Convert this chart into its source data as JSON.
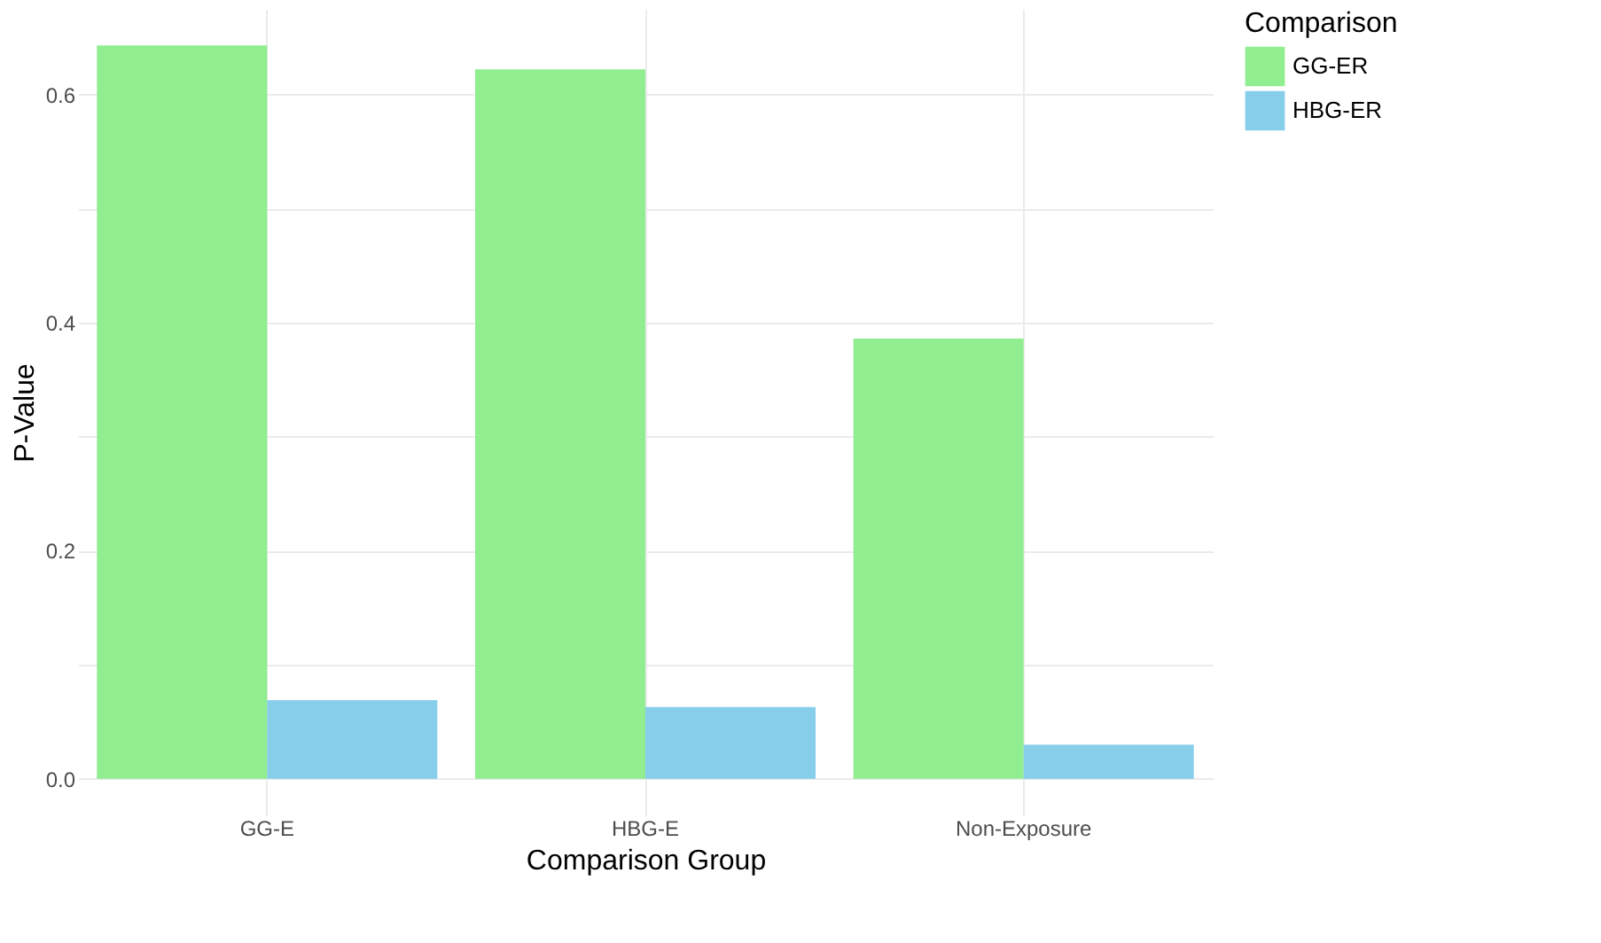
{
  "chart_data": {
    "type": "bar",
    "xlabel": "Comparison Group",
    "ylabel": "P-Value",
    "legend_title": "Comparison",
    "categories": [
      "GG-E",
      "HBG-E",
      "Non-Exposure"
    ],
    "series": [
      {
        "name": "GG-ER",
        "color": "#90ee90",
        "values": [
          0.643,
          0.622,
          0.386
        ]
      },
      {
        "name": "HBG-ER",
        "color": "#87ceeb",
        "values": [
          0.069,
          0.063,
          0.03
        ]
      }
    ],
    "ylim": [
      -0.032,
      0.675
    ],
    "yticks": [
      {
        "value": 0.0,
        "label": "0.0"
      },
      {
        "value": 0.1,
        "label": null
      },
      {
        "value": 0.2,
        "label": "0.2"
      },
      {
        "value": 0.3,
        "label": null
      },
      {
        "value": 0.4,
        "label": "0.4"
      },
      {
        "value": 0.5,
        "label": null
      },
      {
        "value": 0.6,
        "label": "0.6"
      }
    ],
    "grid": true,
    "legend": "right"
  }
}
